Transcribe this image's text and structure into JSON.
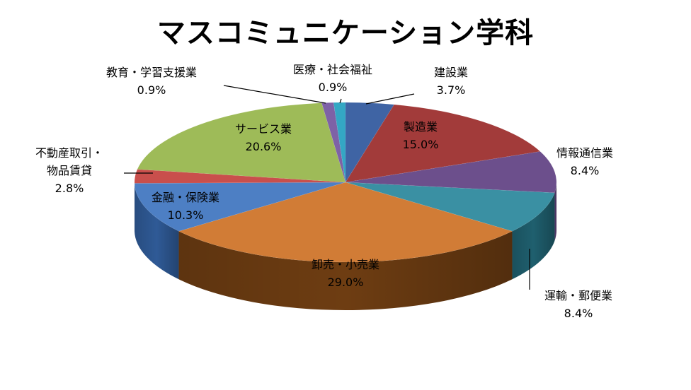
{
  "chart_data": {
    "type": "pie",
    "title": "マスコミュニケーション学科",
    "slices": [
      {
        "label": "建設業",
        "value": 3.7,
        "value_text": "3.7%",
        "color": "#3f64a4",
        "side": "#2c4a7c"
      },
      {
        "label": "製造業",
        "value": 15.0,
        "value_text": "15.0%",
        "color": "#a23b3a",
        "side": "#7a2a29"
      },
      {
        "label": "情報通信業",
        "value": 8.4,
        "value_text": "8.4%",
        "color": "#6c4f8c",
        "side": "#4f3868"
      },
      {
        "label": "運輸・郵便業",
        "value": 8.4,
        "value_text": "8.4%",
        "color": "#3a90a3",
        "side": "#1f5f6e"
      },
      {
        "label": "卸売・小売業",
        "value": 29.0,
        "value_text": "29.0%",
        "color": "#d17c36",
        "side": "#6e3d12"
      },
      {
        "label": "金融・保険業",
        "value": 10.3,
        "value_text": "10.3%",
        "color": "#4d7fc4",
        "side": "#2f5a96"
      },
      {
        "label": "不動産取引・物品賃貸",
        "label_lines": [
          "不動産取引・",
          "物品賃貸"
        ],
        "value": 2.8,
        "value_text": "2.8%",
        "color": "#c94f4c",
        "side": "#8e2e2c"
      },
      {
        "label": "サービス業",
        "value": 20.6,
        "value_text": "20.6%",
        "color": "#9ebb58",
        "side": "#6f8a36"
      },
      {
        "label": "教育・学習支援業",
        "value": 0.9,
        "value_text": "0.9%",
        "color": "#7e62a6",
        "side": "#5a4479"
      },
      {
        "label": "医療・社会福祉",
        "value": 0.9,
        "value_text": "0.9%",
        "color": "#34a7c4",
        "side": "#1f7b92"
      }
    ]
  }
}
